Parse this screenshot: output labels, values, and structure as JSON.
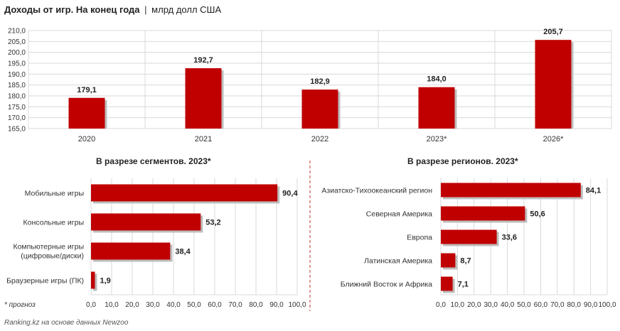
{
  "header": {
    "title": "Доходы от игр. На конец года",
    "separator": "|",
    "unit": "млрд долл США"
  },
  "footnote": "* прогноз",
  "source": "Ranking.kz на основе данных Newzoo",
  "colors": {
    "bar": "#c00000",
    "shadow": "#bdbdbd",
    "grid": "#d9d9d9",
    "divider": "#c0392b"
  },
  "chart_data": [
    {
      "type": "bar",
      "title": "",
      "categories": [
        "2020",
        "2021",
        "2022",
        "2023*",
        "2026*"
      ],
      "values": [
        179.1,
        192.7,
        182.9,
        184.0,
        205.7
      ],
      "value_labels": [
        "179,1",
        "192,7",
        "182,9",
        "184,0",
        "205,7"
      ],
      "ylim": [
        165,
        210
      ],
      "yticks": [
        "165,0",
        "170,0",
        "175,0",
        "180,0",
        "185,0",
        "190,0",
        "195,0",
        "200,0",
        "205,0",
        "210,0"
      ],
      "grid": true
    },
    {
      "type": "bar",
      "orientation": "horizontal",
      "title": "В разрезе сегментов. 2023*",
      "categories": [
        "Мобильные игры",
        "Консольные игры",
        "Компьютерные игры (цифровые/диски)",
        "Браузерные игры (ПК)"
      ],
      "values": [
        90.4,
        53.2,
        38.4,
        1.9
      ],
      "value_labels": [
        "90,4",
        "53,2",
        "38,4",
        "1,9"
      ],
      "xlim": [
        0,
        100
      ],
      "xticks": [
        "0,0",
        "10,0",
        "20,0",
        "30,0",
        "40,0",
        "50,0",
        "60,0",
        "70,0",
        "80,0",
        "90,0",
        "100,0"
      ],
      "grid": true
    },
    {
      "type": "bar",
      "orientation": "horizontal",
      "title": "В разрезе регионов. 2023*",
      "categories": [
        "Азиатско-Тихоокеанский регион",
        "Северная Америка",
        "Европа",
        "Латинская Америка",
        "Ближний Восток и Африка"
      ],
      "values": [
        84.1,
        50.6,
        33.6,
        8.7,
        7.1
      ],
      "value_labels": [
        "84,1",
        "50,6",
        "33,6",
        "8,7",
        "7,1"
      ],
      "xlim": [
        0,
        100
      ],
      "xticks": [
        "0,0",
        "10,0",
        "20,0",
        "30,0",
        "40,0",
        "50,0",
        "60,0",
        "70,0",
        "80,0",
        "90,0",
        "100,0"
      ],
      "grid": true
    }
  ]
}
